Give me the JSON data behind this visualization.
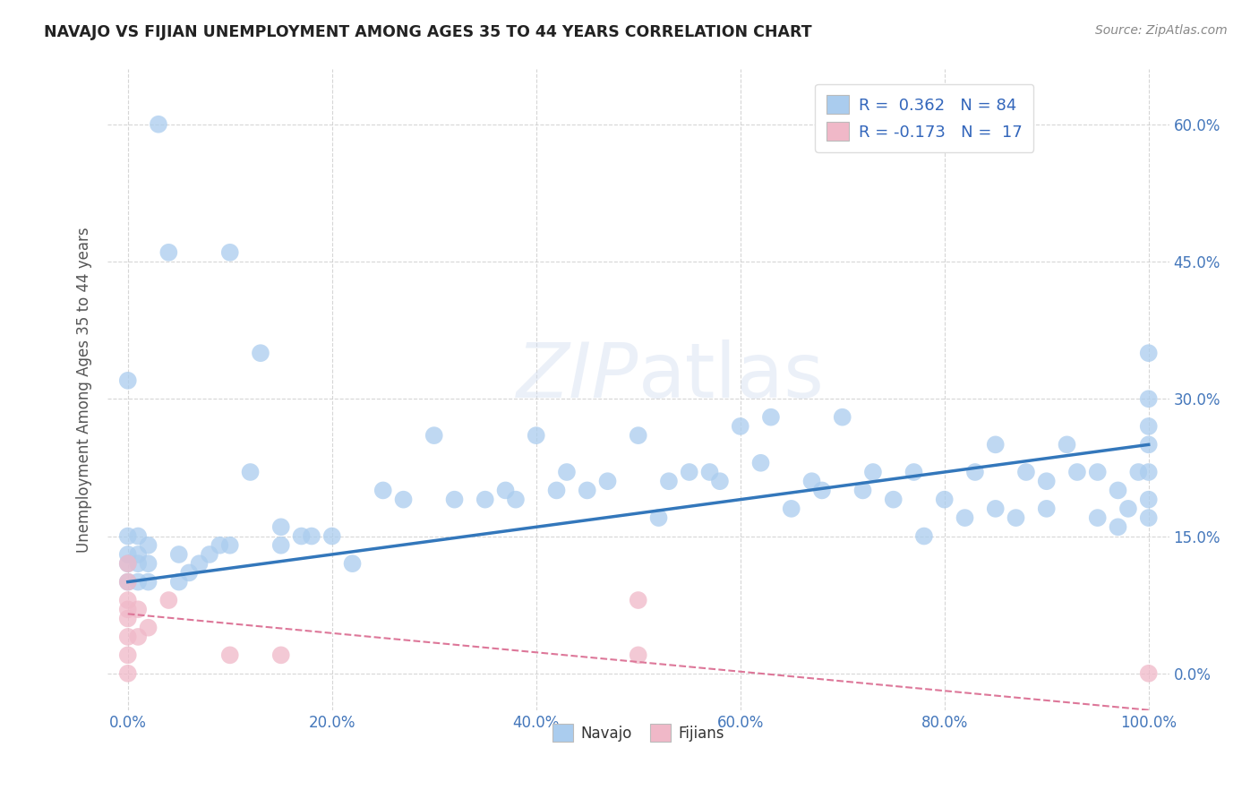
{
  "title": "NAVAJO VS FIJIAN UNEMPLOYMENT AMONG AGES 35 TO 44 YEARS CORRELATION CHART",
  "source": "Source: ZipAtlas.com",
  "ylabel": "Unemployment Among Ages 35 to 44 years",
  "xlim": [
    -0.02,
    1.02
  ],
  "ylim": [
    -0.04,
    0.66
  ],
  "x_ticks": [
    0.0,
    0.2,
    0.4,
    0.6,
    0.8,
    1.0
  ],
  "x_tick_labels": [
    "0.0%",
    "20.0%",
    "40.0%",
    "60.0%",
    "80.0%",
    "100.0%"
  ],
  "y_ticks": [
    0.0,
    0.15,
    0.3,
    0.45,
    0.6
  ],
  "y_tick_labels": [
    "0.0%",
    "15.0%",
    "30.0%",
    "45.0%",
    "60.0%"
  ],
  "navajo_color": "#aaccee",
  "fijian_color": "#f0b8c8",
  "navajo_line_color": "#3377bb",
  "fijian_line_color": "#dd7799",
  "legend_navajo_label": "R =  0.362   N = 84",
  "legend_fijian_label": "R = -0.173   N =  17",
  "bottom_legend_navajo": "Navajo",
  "bottom_legend_fijian": "Fijians",
  "navajo_x": [
    0.0,
    0.0,
    0.0,
    0.0,
    0.0,
    0.01,
    0.01,
    0.01,
    0.01,
    0.02,
    0.02,
    0.02,
    0.03,
    0.04,
    0.05,
    0.05,
    0.06,
    0.07,
    0.08,
    0.09,
    0.1,
    0.1,
    0.12,
    0.13,
    0.15,
    0.15,
    0.17,
    0.18,
    0.2,
    0.22,
    0.25,
    0.27,
    0.3,
    0.32,
    0.35,
    0.37,
    0.38,
    0.4,
    0.42,
    0.43,
    0.45,
    0.47,
    0.5,
    0.52,
    0.53,
    0.55,
    0.57,
    0.58,
    0.6,
    0.62,
    0.63,
    0.65,
    0.67,
    0.68,
    0.7,
    0.72,
    0.73,
    0.75,
    0.77,
    0.78,
    0.8,
    0.82,
    0.83,
    0.85,
    0.85,
    0.87,
    0.88,
    0.9,
    0.9,
    0.92,
    0.93,
    0.95,
    0.95,
    0.97,
    0.97,
    0.98,
    0.99,
    1.0,
    1.0,
    1.0,
    1.0,
    1.0,
    1.0,
    1.0
  ],
  "navajo_y": [
    0.1,
    0.12,
    0.13,
    0.15,
    0.32,
    0.1,
    0.12,
    0.13,
    0.15,
    0.1,
    0.12,
    0.14,
    0.6,
    0.46,
    0.1,
    0.13,
    0.11,
    0.12,
    0.13,
    0.14,
    0.14,
    0.46,
    0.22,
    0.35,
    0.14,
    0.16,
    0.15,
    0.15,
    0.15,
    0.12,
    0.2,
    0.19,
    0.26,
    0.19,
    0.19,
    0.2,
    0.19,
    0.26,
    0.2,
    0.22,
    0.2,
    0.21,
    0.26,
    0.17,
    0.21,
    0.22,
    0.22,
    0.21,
    0.27,
    0.23,
    0.28,
    0.18,
    0.21,
    0.2,
    0.28,
    0.2,
    0.22,
    0.19,
    0.22,
    0.15,
    0.19,
    0.17,
    0.22,
    0.18,
    0.25,
    0.17,
    0.22,
    0.18,
    0.21,
    0.25,
    0.22,
    0.17,
    0.22,
    0.16,
    0.2,
    0.18,
    0.22,
    0.17,
    0.19,
    0.22,
    0.25,
    0.27,
    0.3,
    0.35
  ],
  "fijian_x": [
    0.0,
    0.0,
    0.0,
    0.0,
    0.0,
    0.0,
    0.0,
    0.0,
    0.01,
    0.01,
    0.02,
    0.04,
    0.1,
    0.15,
    0.5,
    0.5,
    1.0
  ],
  "fijian_y": [
    0.0,
    0.02,
    0.04,
    0.06,
    0.07,
    0.08,
    0.1,
    0.12,
    0.04,
    0.07,
    0.05,
    0.08,
    0.02,
    0.02,
    0.02,
    0.08,
    0.0
  ],
  "nav_line_x0": 0.0,
  "nav_line_y0": 0.1,
  "nav_line_x1": 1.0,
  "nav_line_y1": 0.25,
  "fij_line_x0": 0.0,
  "fij_line_y0": 0.065,
  "fij_line_x1": 1.0,
  "fij_line_y1": -0.04,
  "background_color": "#ffffff",
  "grid_color": "#cccccc",
  "title_color": "#222222",
  "source_color": "#888888",
  "tick_color": "#4477bb",
  "label_color": "#555555"
}
